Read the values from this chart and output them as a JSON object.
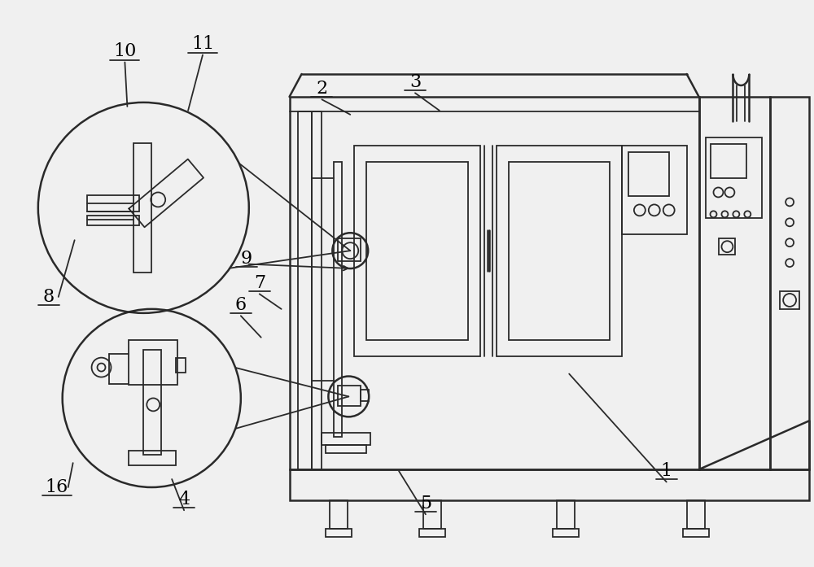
{
  "bg_color": "#f0f0f0",
  "line_color": "#2a2a2a",
  "lw": 1.3,
  "lw2": 1.8,
  "fig_width": 10.0,
  "fig_height": 6.97
}
